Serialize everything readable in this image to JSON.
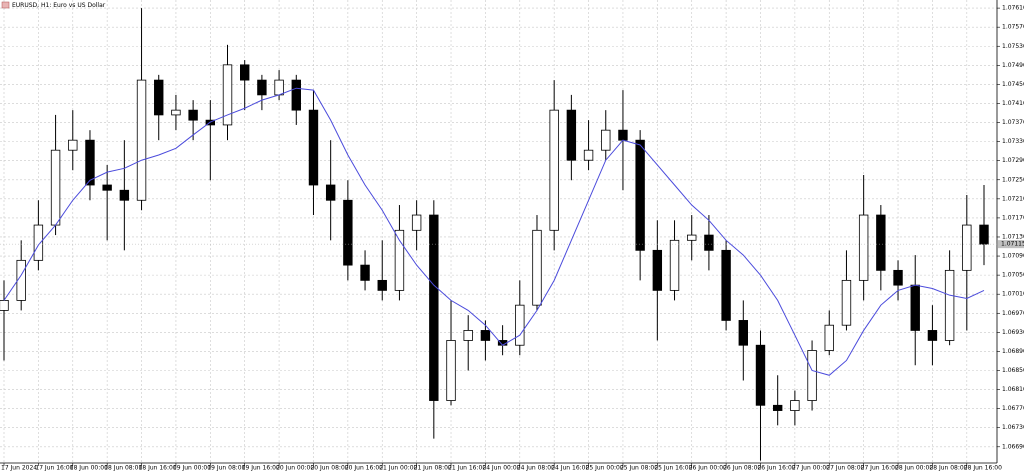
{
  "chart_data": {
    "type": "candlestick",
    "title": "EURUSD, H1:  Euro vs US Dollar",
    "grid": true,
    "up_color": "#ffffff",
    "down_color": "#000000",
    "wick_color": "#000000",
    "categories": [
      "17 Jun 2024",
      null,
      "17 Jun 16:00",
      null,
      "18 Jun 00:00",
      null,
      "18 Jun 08:00",
      null,
      "18 Jun 16:00",
      null,
      "19 Jun 00:00",
      null,
      "19 Jun 08:00",
      null,
      "19 Jun 16:00",
      null,
      "20 Jun 00:00",
      null,
      "20 Jun 08:00",
      null,
      "20 Jun 16:00",
      null,
      "21 Jun 00:00",
      null,
      "21 Jun 08:00",
      null,
      "21 Jun 16:00",
      null,
      "24 Jun 00:00",
      null,
      "24 Jun 08:00",
      null,
      "24 Jun 16:00",
      null,
      "25 Jun 00:00",
      null,
      "25 Jun 08:00",
      null,
      "25 Jun 16:00",
      null,
      "26 Jun 00:00",
      null,
      "26 Jun 08:00",
      null,
      "26 Jun 16:00",
      null,
      "27 Jun 00:00",
      null,
      "27 Jun 08:00",
      null,
      "27 Jun 16:00",
      null,
      "28 Jun 00:00",
      null,
      "28 Jun 08:00",
      null,
      "28 Jun 16:00",
      null
    ],
    "open": [
      1.06976,
      1.06997,
      1.07081,
      1.07155,
      1.07312,
      1.07333,
      1.07239,
      1.07228,
      1.07207,
      1.07459,
      1.07386,
      1.07396,
      1.07375,
      1.07365,
      1.07491,
      1.07459,
      1.07428,
      1.07459,
      1.07396,
      1.07239,
      1.07207,
      1.07071,
      1.07039,
      1.07018,
      1.07144,
      1.07176,
      1.06787,
      1.06913,
      1.06934,
      1.06913,
      1.06903,
      1.06987,
      1.07144,
      1.07396,
      1.07291,
      1.07312,
      1.07354,
      1.07333,
      1.07102,
      1.07018,
      1.07123,
      1.07134,
      1.07102,
      1.06955,
      1.06903,
      1.06777,
      1.06766,
      1.06787,
      1.06892,
      1.06945,
      1.07039,
      1.07176,
      1.0706,
      1.07029,
      1.06934,
      1.06913,
      1.0706,
      1.07155
    ],
    "high": [
      1.07039,
      1.07123,
      1.07207,
      1.07386,
      1.07396,
      1.07354,
      1.07281,
      1.07333,
      1.0761,
      1.0747,
      1.07428,
      1.07417,
      1.07417,
      1.07533,
      1.07501,
      1.0747,
      1.0748,
      1.0747,
      1.07438,
      1.07333,
      1.07249,
      1.07102,
      1.07123,
      1.07197,
      1.07207,
      1.07207,
      1.06997,
      1.06966,
      1.06955,
      1.06945,
      1.07039,
      1.07176,
      1.07459,
      1.07428,
      1.07375,
      1.07396,
      1.07438,
      1.07354,
      1.07165,
      1.07165,
      1.07176,
      1.07176,
      1.07123,
      1.06997,
      1.06934,
      1.0684,
      1.06808,
      1.06913,
      1.06976,
      1.07102,
      1.0726,
      1.07197,
      1.07081,
      1.07092,
      1.06987,
      1.07102,
      1.07218,
      1.07239
    ],
    "low": [
      1.06871,
      1.06976,
      1.0706,
      1.07134,
      1.0727,
      1.07207,
      1.07123,
      1.07102,
      1.07186,
      1.07333,
      1.07354,
      1.07333,
      1.07249,
      1.07333,
      1.07396,
      1.07396,
      1.07417,
      1.07365,
      1.07176,
      1.07123,
      1.07039,
      1.07018,
      1.06997,
      1.06997,
      1.07102,
      1.06707,
      1.06777,
      1.0685,
      1.06871,
      1.06882,
      1.06882,
      1.06976,
      1.07102,
      1.07249,
      1.0727,
      1.07291,
      1.07228,
      1.07039,
      1.06913,
      1.06997,
      1.07081,
      1.0706,
      1.06934,
      1.06829,
      1.06661,
      1.06735,
      1.06735,
      1.06766,
      1.06882,
      1.06934,
      1.06997,
      1.07018,
      1.06997,
      1.06861,
      1.06861,
      1.06903,
      1.06934,
      1.07071
    ],
    "close": [
      1.06997,
      1.07081,
      1.07155,
      1.07312,
      1.07333,
      1.07239,
      1.07228,
      1.07207,
      1.07459,
      1.07386,
      1.07396,
      1.07375,
      1.07365,
      1.07491,
      1.07459,
      1.07428,
      1.07459,
      1.07396,
      1.07239,
      1.07207,
      1.07071,
      1.07039,
      1.07018,
      1.07144,
      1.07176,
      1.06787,
      1.06913,
      1.06934,
      1.06913,
      1.06903,
      1.06987,
      1.07144,
      1.07396,
      1.07291,
      1.07312,
      1.07354,
      1.07333,
      1.07102,
      1.07018,
      1.07123,
      1.07134,
      1.07102,
      1.06955,
      1.06903,
      1.06777,
      1.06766,
      1.06787,
      1.06892,
      1.06945,
      1.07039,
      1.07176,
      1.0706,
      1.07029,
      1.06934,
      1.06913,
      1.0706,
      1.07155,
      1.07115
    ],
    "moving_average": {
      "color": "#4b4bdc",
      "values": [
        1.06997,
        1.0705,
        1.07113,
        1.07155,
        1.07207,
        1.07249,
        1.07266,
        1.07274,
        1.07291,
        1.07302,
        1.07316,
        1.07344,
        1.07371,
        1.07386,
        1.074,
        1.07417,
        1.07428,
        1.07442,
        1.07438,
        1.07375,
        1.07302,
        1.07239,
        1.07186,
        1.07123,
        1.07071,
        1.07029,
        1.06997,
        1.06976,
        1.06945,
        1.06903,
        1.06924,
        1.06976,
        1.07039,
        1.07123,
        1.07207,
        1.07291,
        1.07333,
        1.07323,
        1.07281,
        1.07239,
        1.07197,
        1.07165,
        1.07123,
        1.07092,
        1.0705,
        1.06997,
        1.06924,
        1.0685,
        1.0684,
        1.06871,
        1.06934,
        1.06987,
        1.07018,
        1.07029,
        1.07022,
        1.07008,
        1.07001,
        1.07018
      ]
    },
    "current_price": {
      "value": 1.07115,
      "label": "1.07115"
    },
    "ylim": [
      1.06656,
      1.07627
    ],
    "yticks": [
      {
        "value": 1.0761,
        "label": "1.07610"
      },
      {
        "value": 1.0757,
        "label": "1.07570"
      },
      {
        "value": 1.0753,
        "label": "1.07530"
      },
      {
        "value": 1.0749,
        "label": "1.07490"
      },
      {
        "value": 1.0745,
        "label": "1.07450"
      },
      {
        "value": 1.0741,
        "label": "1.07410"
      },
      {
        "value": 1.0737,
        "label": "1.07370"
      },
      {
        "value": 1.0733,
        "label": "1.07330"
      },
      {
        "value": 1.0729,
        "label": "1.07290"
      },
      {
        "value": 1.0725,
        "label": "1.07250"
      },
      {
        "value": 1.0721,
        "label": "1.07210"
      },
      {
        "value": 1.0717,
        "label": "1.07170"
      },
      {
        "value": 1.0713,
        "label": "1.07130"
      },
      {
        "value": 1.0709,
        "label": "1.07090"
      },
      {
        "value": 1.0705,
        "label": "1.07050"
      },
      {
        "value": 1.0701,
        "label": "1.07010"
      },
      {
        "value": 1.0697,
        "label": "1.06970"
      },
      {
        "value": 1.0693,
        "label": "1.06930"
      },
      {
        "value": 1.0689,
        "label": "1.06890"
      },
      {
        "value": 1.0685,
        "label": "1.06850"
      },
      {
        "value": 1.0681,
        "label": "1.06810"
      },
      {
        "value": 1.0677,
        "label": "1.06770"
      },
      {
        "value": 1.0673,
        "label": "1.06730"
      },
      {
        "value": 1.0669,
        "label": "1.06690"
      }
    ]
  }
}
